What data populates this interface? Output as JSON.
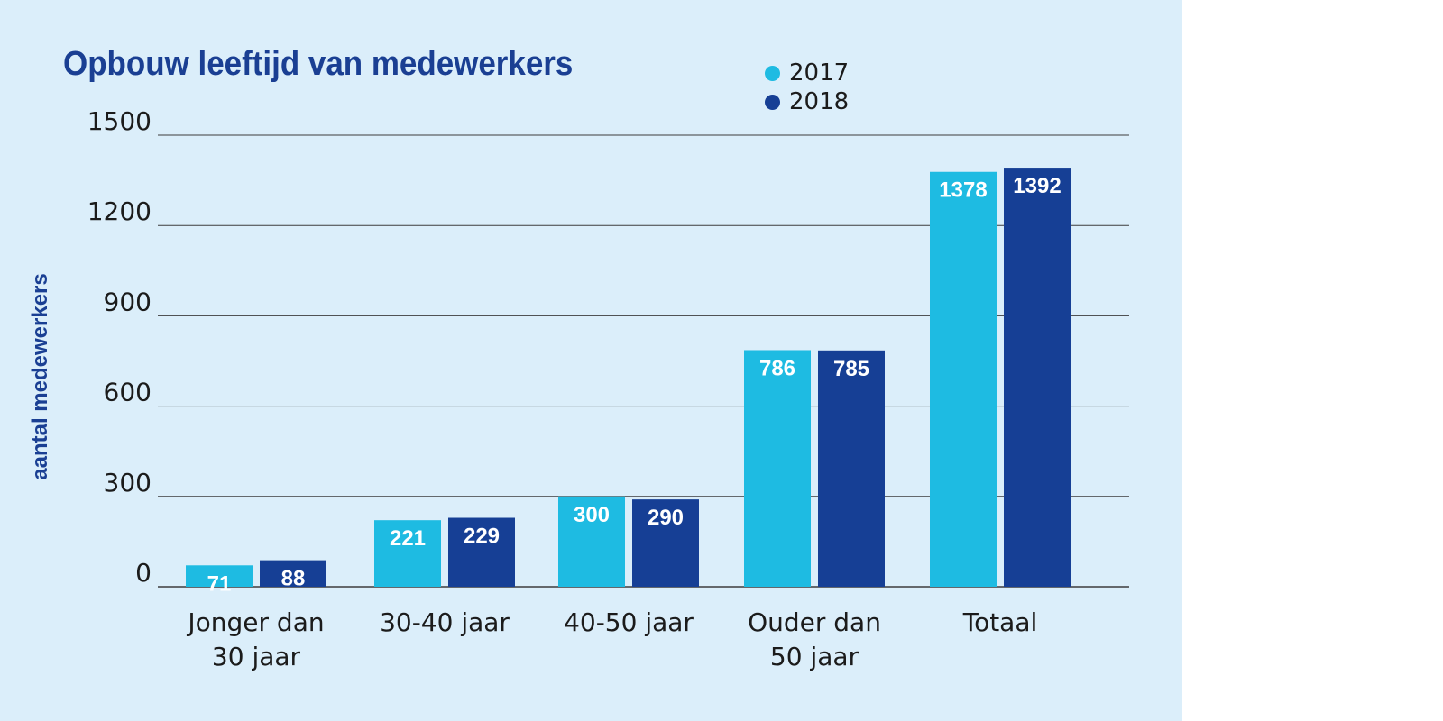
{
  "chart_data": {
    "type": "bar",
    "title": "Opbouw leeftijd van medewerkers",
    "xlabel": "",
    "ylabel": "aantal medewerkers",
    "ylim": [
      0,
      1500
    ],
    "yticks": [
      0,
      300,
      600,
      900,
      1200,
      1500
    ],
    "grid": true,
    "legend_position": "top-right",
    "categories": [
      [
        "Jonger dan",
        "30 jaar"
      ],
      [
        "30-40 jaar"
      ],
      [
        "40-50 jaar"
      ],
      [
        "Ouder dan",
        "50 jaar"
      ],
      [
        "Totaal"
      ]
    ],
    "series": [
      {
        "name": "2017",
        "color": "#1ebbe2",
        "values": [
          71,
          221,
          300,
          786,
          1378
        ]
      },
      {
        "name": "2018",
        "color": "#163f95",
        "values": [
          88,
          229,
          290,
          785,
          1392
        ]
      }
    ]
  }
}
